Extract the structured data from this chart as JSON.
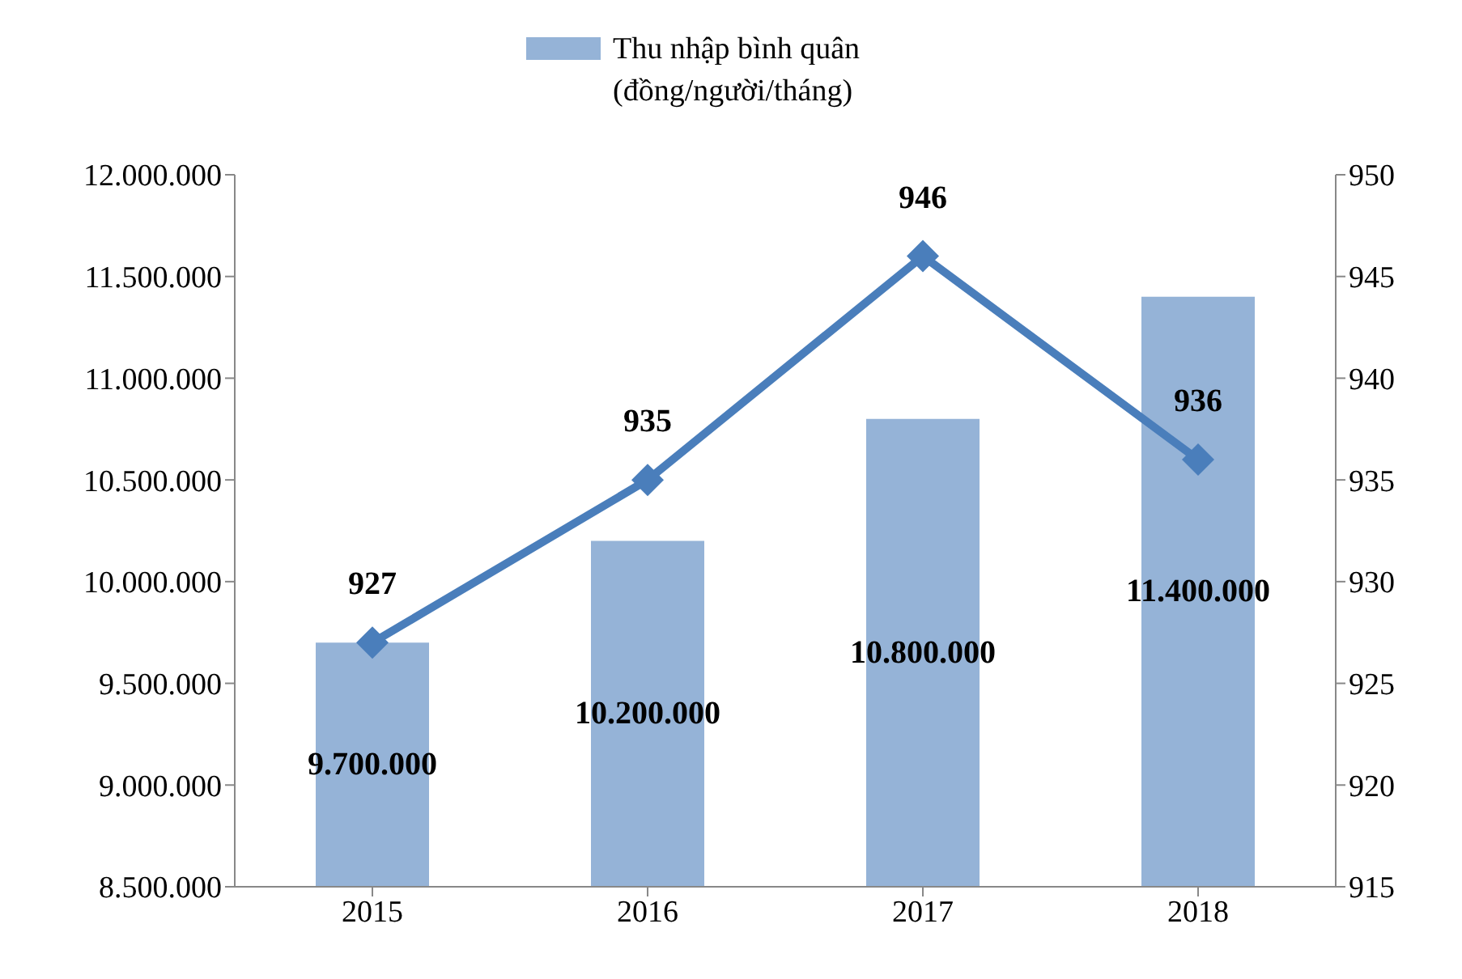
{
  "chart_data": {
    "type": "bar",
    "categories": [
      "2015",
      "2016",
      "2017",
      "2018"
    ],
    "series": [
      {
        "name": "Thu nhập bình quân (đồng/người/tháng)",
        "color": "#95b3d7",
        "values": [
          9700000,
          10200000,
          10800000,
          11400000
        ],
        "value_labels": [
          "9.700.000",
          "10.200.000",
          "10.800.000",
          "11.400.000"
        ]
      },
      {
        "type": "line",
        "axis": "y2",
        "color": "#4a7ebb",
        "values": [
          927,
          935,
          946,
          936
        ],
        "value_labels": [
          "927",
          "935",
          "946",
          "936"
        ]
      }
    ],
    "ylim": [
      8500000,
      12000000
    ],
    "yticks": [
      {
        "value": 8500000,
        "label": "8.500.000"
      },
      {
        "value": 9000000,
        "label": "9.000.000"
      },
      {
        "value": 9500000,
        "label": "9.500.000"
      },
      {
        "value": 10000000,
        "label": "10.000.000"
      },
      {
        "value": 10500000,
        "label": "10.500.000"
      },
      {
        "value": 11000000,
        "label": "11.000.000"
      },
      {
        "value": 11500000,
        "label": "11.500.000"
      },
      {
        "value": 12000000,
        "label": "12.000.000"
      }
    ],
    "y2lim": [
      915,
      950
    ],
    "y2ticks": [
      915,
      920,
      925,
      930,
      935,
      940,
      945,
      950
    ],
    "marker": "diamond",
    "line_style": "solid",
    "grid": false,
    "legend": "top"
  }
}
